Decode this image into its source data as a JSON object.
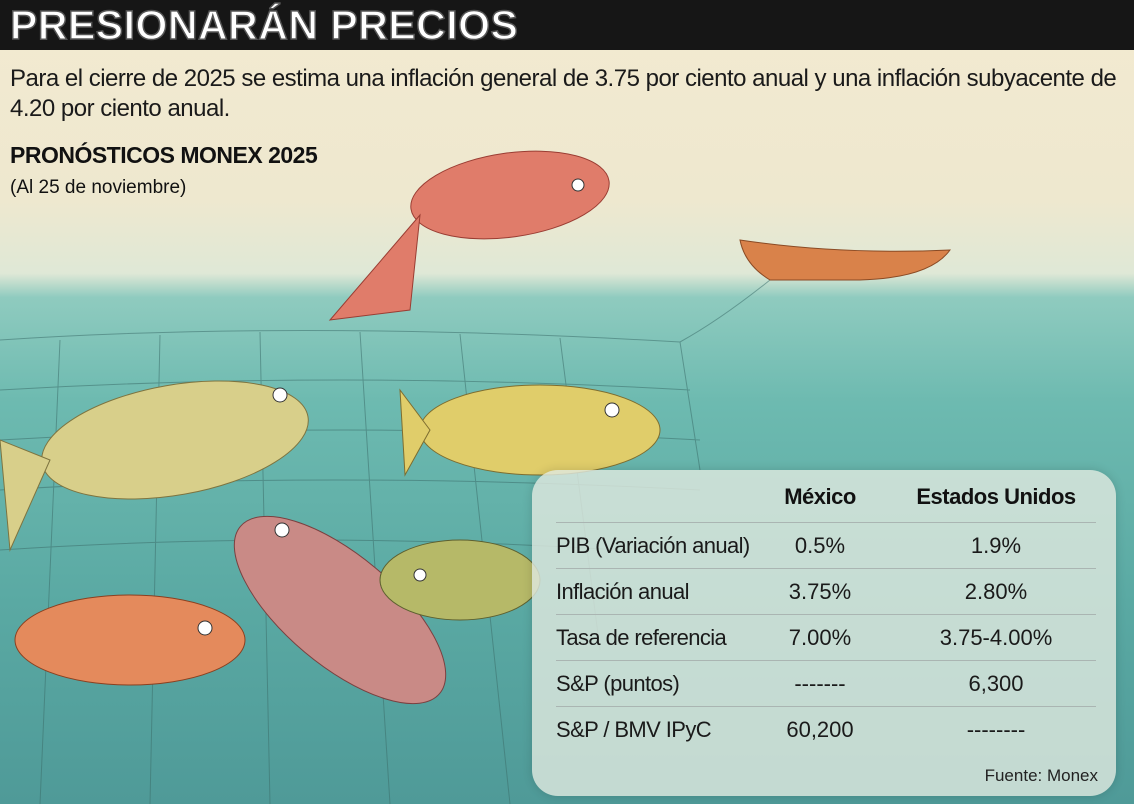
{
  "header": {
    "title": "PRESIONARÁN PRECIOS"
  },
  "intro": "Para el cierre de 2025 se estima una inflación general de 3.75 por ciento anual y una inflación subyacente de 4.20 por ciento anual.",
  "subtitle": "PRONÓSTICOS MONEX 2025",
  "date_note": "(Al 25 de noviembre)",
  "table": {
    "columns": [
      "México",
      "Estados Unidos"
    ],
    "rows": [
      {
        "label": "PIB (Variación anual)",
        "mexico": "0.5%",
        "usa": "1.9%"
      },
      {
        "label": "Inflación anual",
        "mexico": "3.75%",
        "usa": "2.80%"
      },
      {
        "label": "Tasa de referencia",
        "mexico": "7.00%",
        "usa": "3.75-4.00%"
      },
      {
        "label": "S&P (puntos)",
        "mexico": "-------",
        "usa": "6,300"
      },
      {
        "label": "S&P / BMV IPyC",
        "mexico": "60,200",
        "usa": "--------"
      }
    ],
    "source": "Fuente: Monex"
  }
}
